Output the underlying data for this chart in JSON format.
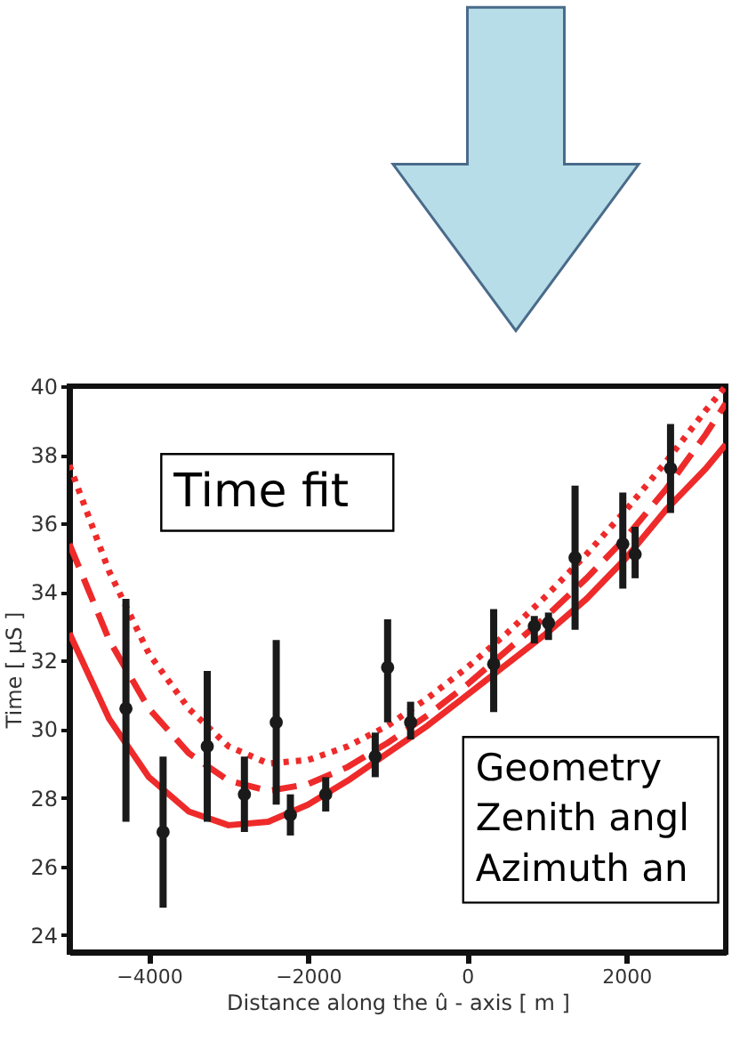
{
  "chart_data": {
    "type": "scatter",
    "xlabel": "Distance along the û - axis [ m ]",
    "ylabel": "Time [ μS ]",
    "xlim": [
      -5000,
      3250
    ],
    "ylim": [
      23.5,
      40
    ],
    "xticks": [
      -4000,
      -2000,
      0,
      2000
    ],
    "yticks": [
      24,
      26,
      28,
      30,
      32,
      34,
      36,
      38,
      40
    ],
    "grid": false,
    "annotations": [
      "Time fit",
      "Geometry",
      "Zenith angl",
      "Azimuth an"
    ],
    "series": [
      {
        "color": "#1a1a1a",
        "marker": "circle",
        "x": [
          -4289,
          -3822,
          -3267,
          -2800,
          -2400,
          -2222,
          -1778,
          -1156,
          -1000,
          -711,
          333,
          844,
          1022,
          1356,
          1956,
          2111,
          2556
        ],
        "values": [
          30.6,
          27.0,
          29.5,
          28.1,
          30.2,
          27.5,
          28.1,
          29.2,
          31.8,
          30.2,
          31.9,
          33.0,
          33.1,
          35.0,
          35.4,
          35.1,
          37.6
        ],
        "errors": [
          [
            27.3,
            33.8
          ],
          [
            24.8,
            29.2
          ],
          [
            27.3,
            31.7
          ],
          [
            27.0,
            29.2
          ],
          [
            27.8,
            32.6
          ],
          [
            26.9,
            28.1
          ],
          [
            27.6,
            28.6
          ],
          [
            28.6,
            29.9
          ],
          [
            30.2,
            33.2
          ],
          [
            29.7,
            30.8
          ],
          [
            30.5,
            33.5
          ],
          [
            32.5,
            33.3
          ],
          [
            32.6,
            33.4
          ],
          [
            32.9,
            37.1
          ],
          [
            34.1,
            36.9
          ],
          [
            34.4,
            35.9
          ],
          [
            36.3,
            38.9
          ]
        ]
      },
      {
        "type": "line",
        "color": "#ee2a2a",
        "line_style": "solid",
        "marker": "none",
        "x": [
          -5000,
          -4500,
          -4000,
          -3500,
          -3000,
          -2500,
          -2000,
          -1500,
          -1000,
          -500,
          0,
          500,
          1000,
          1500,
          2000,
          2500,
          3000,
          3250
        ],
        "values": [
          32.8,
          30.3,
          28.6,
          27.6,
          27.2,
          27.3,
          27.8,
          28.5,
          29.3,
          30.1,
          31.0,
          31.9,
          32.8,
          33.8,
          35.0,
          36.4,
          37.6,
          38.3
        ]
      },
      {
        "type": "line",
        "color": "#ee2a2a",
        "line_style": "dashed",
        "marker": "none",
        "x": [
          -5000,
          -4500,
          -4000,
          -3500,
          -3000,
          -2500,
          -2000,
          -1500,
          -1000,
          -500,
          0,
          500,
          1000,
          1500,
          2000,
          2500,
          3000,
          3250
        ],
        "values": [
          35.4,
          32.6,
          30.6,
          29.3,
          28.5,
          28.2,
          28.4,
          28.9,
          29.6,
          30.4,
          31.3,
          32.3,
          33.3,
          34.4,
          35.6,
          37.0,
          38.6,
          39.5
        ]
      },
      {
        "type": "line",
        "color": "#ee2a2a",
        "line_style": "dotted",
        "marker": "none",
        "x": [
          -5000,
          -4500,
          -4000,
          -3500,
          -3000,
          -2500,
          -2000,
          -1500,
          -1000,
          -500,
          0,
          500,
          1000,
          1500,
          2000,
          2500,
          3000,
          3250
        ],
        "values": [
          37.7,
          34.6,
          32.2,
          30.6,
          29.5,
          29.0,
          29.1,
          29.5,
          30.1,
          30.9,
          31.8,
          32.8,
          33.9,
          35.1,
          36.4,
          37.8,
          39.3,
          40.0
        ]
      }
    ]
  }
}
